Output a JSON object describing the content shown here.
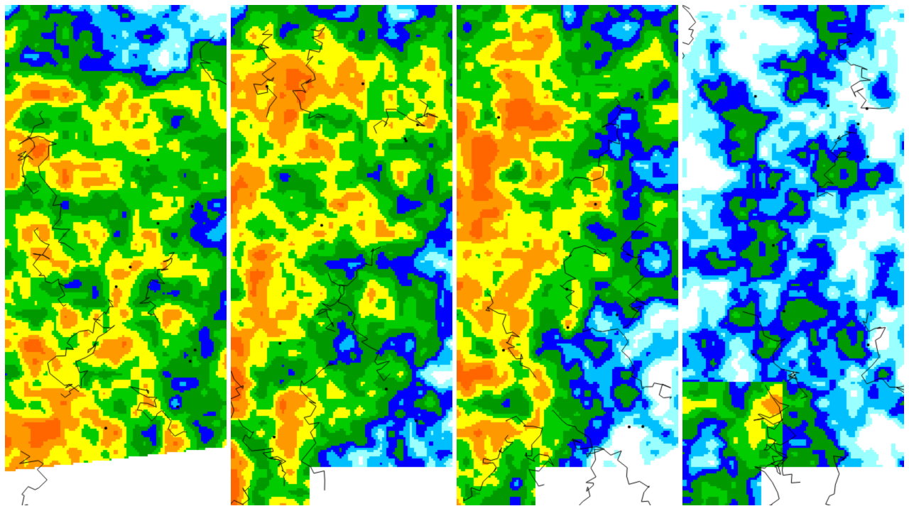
{
  "figure": {
    "panels": [
      {
        "id": "map-1",
        "dominant": "orange-yellow-green"
      },
      {
        "id": "map-2",
        "dominant": "orange-green-blue"
      },
      {
        "id": "map-3",
        "dominant": "orange-green-blue"
      },
      {
        "id": "map-4",
        "dominant": "white-blue-green"
      }
    ],
    "color_scale": [
      "#ffffff",
      "#99ffff",
      "#00bfff",
      "#0000ff",
      "#009900",
      "#00cc00",
      "#ffff00",
      "#ff9900",
      "#ff6600"
    ],
    "border_color": "#000000"
  }
}
